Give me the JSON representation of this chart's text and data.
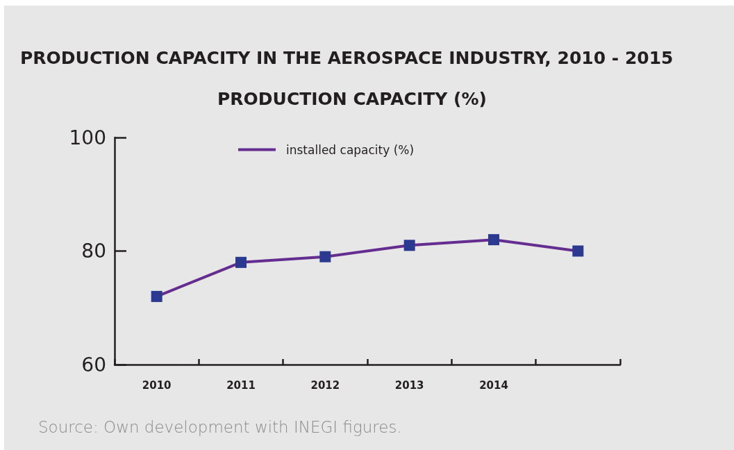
{
  "chart_data": {
    "type": "line",
    "title": "PRODUCTION CAPACITY IN THE AEROSPACE INDUSTRY, 2010 - 2015",
    "subtitle": "PRODUCTION CAPACITY (%)",
    "categories": [
      "2010",
      "2011",
      "2012",
      "2013",
      "2014",
      null
    ],
    "series": [
      {
        "name": "installed capacity (%)",
        "color": "#662d91",
        "colors": [
          "#2b3990",
          "#2b3990",
          "#2b3990",
          "#2b3990",
          "#2b3990",
          "#2b3990"
        ],
        "values": [
          72,
          78,
          79,
          81,
          82,
          80
        ]
      }
    ],
    "ylim": [
      60,
      100
    ],
    "yticks": [
      60,
      80,
      100
    ],
    "grid": false,
    "legend": "top",
    "marker": "square",
    "line_style": "solid",
    "annotations": [
      "Source: Own development with INEGI figures."
    ]
  }
}
